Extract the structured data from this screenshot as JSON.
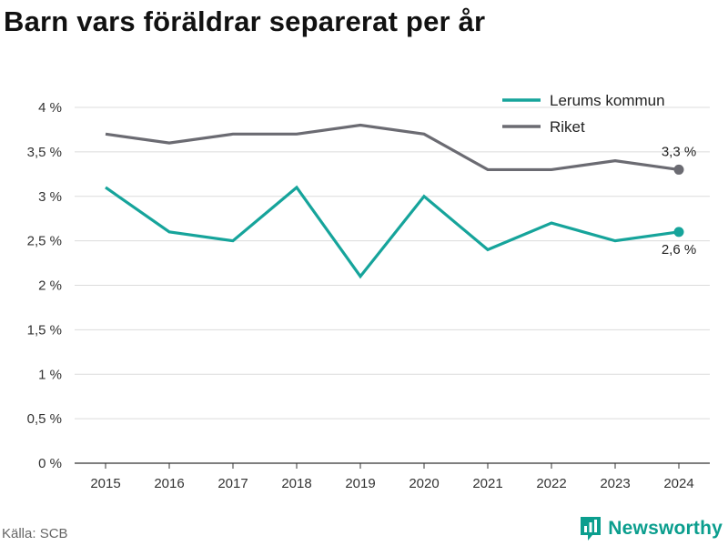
{
  "title": "Barn vars föräldrar separerat per år",
  "source": "Källa: SCB",
  "brand": {
    "name": "Newsworthy",
    "icon": "newsworthy-logo-icon",
    "color": "#0b9e8e"
  },
  "chart_data": {
    "type": "line",
    "categories": [
      "2015",
      "2016",
      "2017",
      "2018",
      "2019",
      "2020",
      "2021",
      "2022",
      "2023",
      "2024"
    ],
    "series": [
      {
        "name": "Lerums kommun",
        "color": "#16a49b",
        "values": [
          3.1,
          2.6,
          2.5,
          3.1,
          2.1,
          3.0,
          2.4,
          2.7,
          2.5,
          2.6
        ],
        "end_label": "2,6 %"
      },
      {
        "name": "Riket",
        "color": "#6b6b72",
        "values": [
          3.7,
          3.6,
          3.7,
          3.7,
          3.8,
          3.7,
          3.3,
          3.3,
          3.4,
          3.3
        ],
        "end_label": "3,3 %"
      }
    ],
    "ylim": [
      0,
      4
    ],
    "yticks": [
      0,
      0.5,
      1,
      1.5,
      2,
      2.5,
      3,
      3.5,
      4
    ],
    "ytick_labels": [
      "0 %",
      "0,5 %",
      "1 %",
      "1,5 %",
      "2 %",
      "2,5 %",
      "3 %",
      "3,5 %",
      "4 %"
    ],
    "xlabel": "",
    "ylabel": "",
    "grid": true,
    "legend_position": "top-right"
  }
}
